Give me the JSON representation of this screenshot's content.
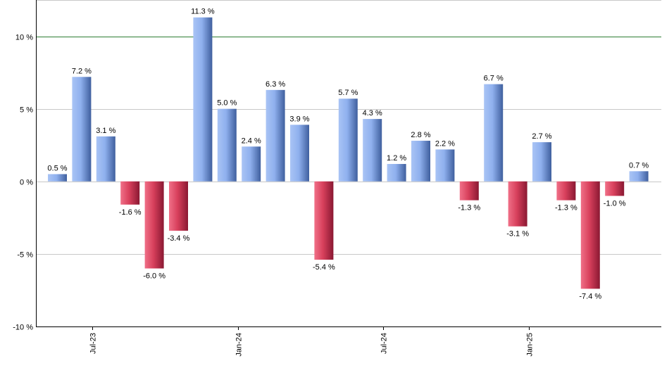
{
  "chart_data": {
    "type": "bar",
    "title": "",
    "xlabel": "",
    "ylabel": "",
    "ylim": [
      -10,
      12.5
    ],
    "yticks": [
      -10,
      -5,
      0,
      5,
      10
    ],
    "ytick_suffix": " %",
    "reference_line": {
      "value": 10,
      "color": "#2e7d32"
    },
    "grid": true,
    "legend": "none",
    "values": [
      0.5,
      7.2,
      3.1,
      -1.6,
      -6.0,
      -3.4,
      11.3,
      5.0,
      2.4,
      6.3,
      3.9,
      -5.4,
      5.7,
      4.3,
      1.2,
      2.8,
      2.2,
      -1.3,
      6.7,
      -3.1,
      2.7,
      -1.3,
      -7.4,
      -1.0,
      0.7
    ],
    "data_labels": [
      "0.5 %",
      "7.2 %",
      "3.1 %",
      "-1.6 %",
      "-6.0 %",
      "-3.4 %",
      "11.3 %",
      "5.0 %",
      "2.4 %",
      "6.3 %",
      "3.9 %",
      "-5.4 %",
      "5.7 %",
      "4.3 %",
      "1.2 %",
      "2.8 %",
      "2.2 %",
      "-1.3 %",
      "6.7 %",
      "-3.1 %",
      "2.7 %",
      "-1.3 %",
      "-7.4 %",
      "-1.0 %",
      "0.7 %"
    ],
    "xtick_labels": [
      {
        "index": 2,
        "label": "Jul-23"
      },
      {
        "index": 8,
        "label": "Jan-24"
      },
      {
        "index": 14,
        "label": "Jul-24"
      },
      {
        "index": 20,
        "label": "Jan-25"
      }
    ],
    "colors": {
      "positive_light": "#a9c4f5",
      "positive_dark": "#3f5f9e",
      "negative_light": "#f07088",
      "negative_dark": "#8a1832",
      "grid": "#c8c8c8",
      "axis": "#000000"
    }
  }
}
